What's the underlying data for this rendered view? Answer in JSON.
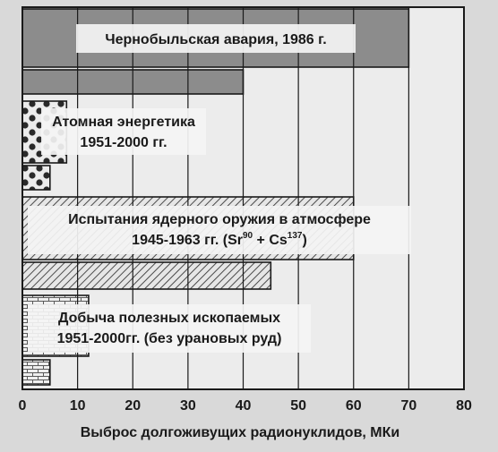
{
  "chart_data": {
    "type": "bar",
    "orientation": "horizontal",
    "xlabel": "Выброс долгоживущих радионуклидов, МКи",
    "xlim": [
      0,
      80
    ],
    "xticks": [
      0,
      10,
      20,
      30,
      40,
      50,
      60,
      70,
      80
    ],
    "grid": true,
    "bars": [
      {
        "group": 0,
        "value": 70,
        "pattern": "solid-gray"
      },
      {
        "group": 0,
        "value": 40,
        "pattern": "solid-gray"
      },
      {
        "group": 1,
        "value": 8,
        "pattern": "dots"
      },
      {
        "group": 1,
        "value": 5,
        "pattern": "dots"
      },
      {
        "group": 2,
        "value": 60,
        "pattern": "hatch"
      },
      {
        "group": 2,
        "value": 45,
        "pattern": "hatch"
      },
      {
        "group": 3,
        "value": 12,
        "pattern": "bricks"
      },
      {
        "group": 3,
        "value": 5,
        "pattern": "bricks"
      }
    ],
    "annotations": [
      {
        "lines": [
          "Чернобыльская авария, 1986 г."
        ]
      },
      {
        "lines": [
          "Атомная энергетика",
          "1951-2000 гг."
        ]
      },
      {
        "lines": [
          "Испытания ядерного оружия в атмосфере",
          "1945-1963 гг. (Sr",
          "90",
          " + Cs",
          "137",
          ")"
        ]
      },
      {
        "lines": [
          "Добыча полезных ископаемых",
          "1951-2000гг. (без урановых руд)"
        ]
      }
    ]
  },
  "colors": {
    "background": "#d9d9d9",
    "plot_background": "#ececec",
    "bar_gray": "#8c8c8c",
    "ink": "#1a1a1a",
    "label_box": "#f4f4f4"
  }
}
